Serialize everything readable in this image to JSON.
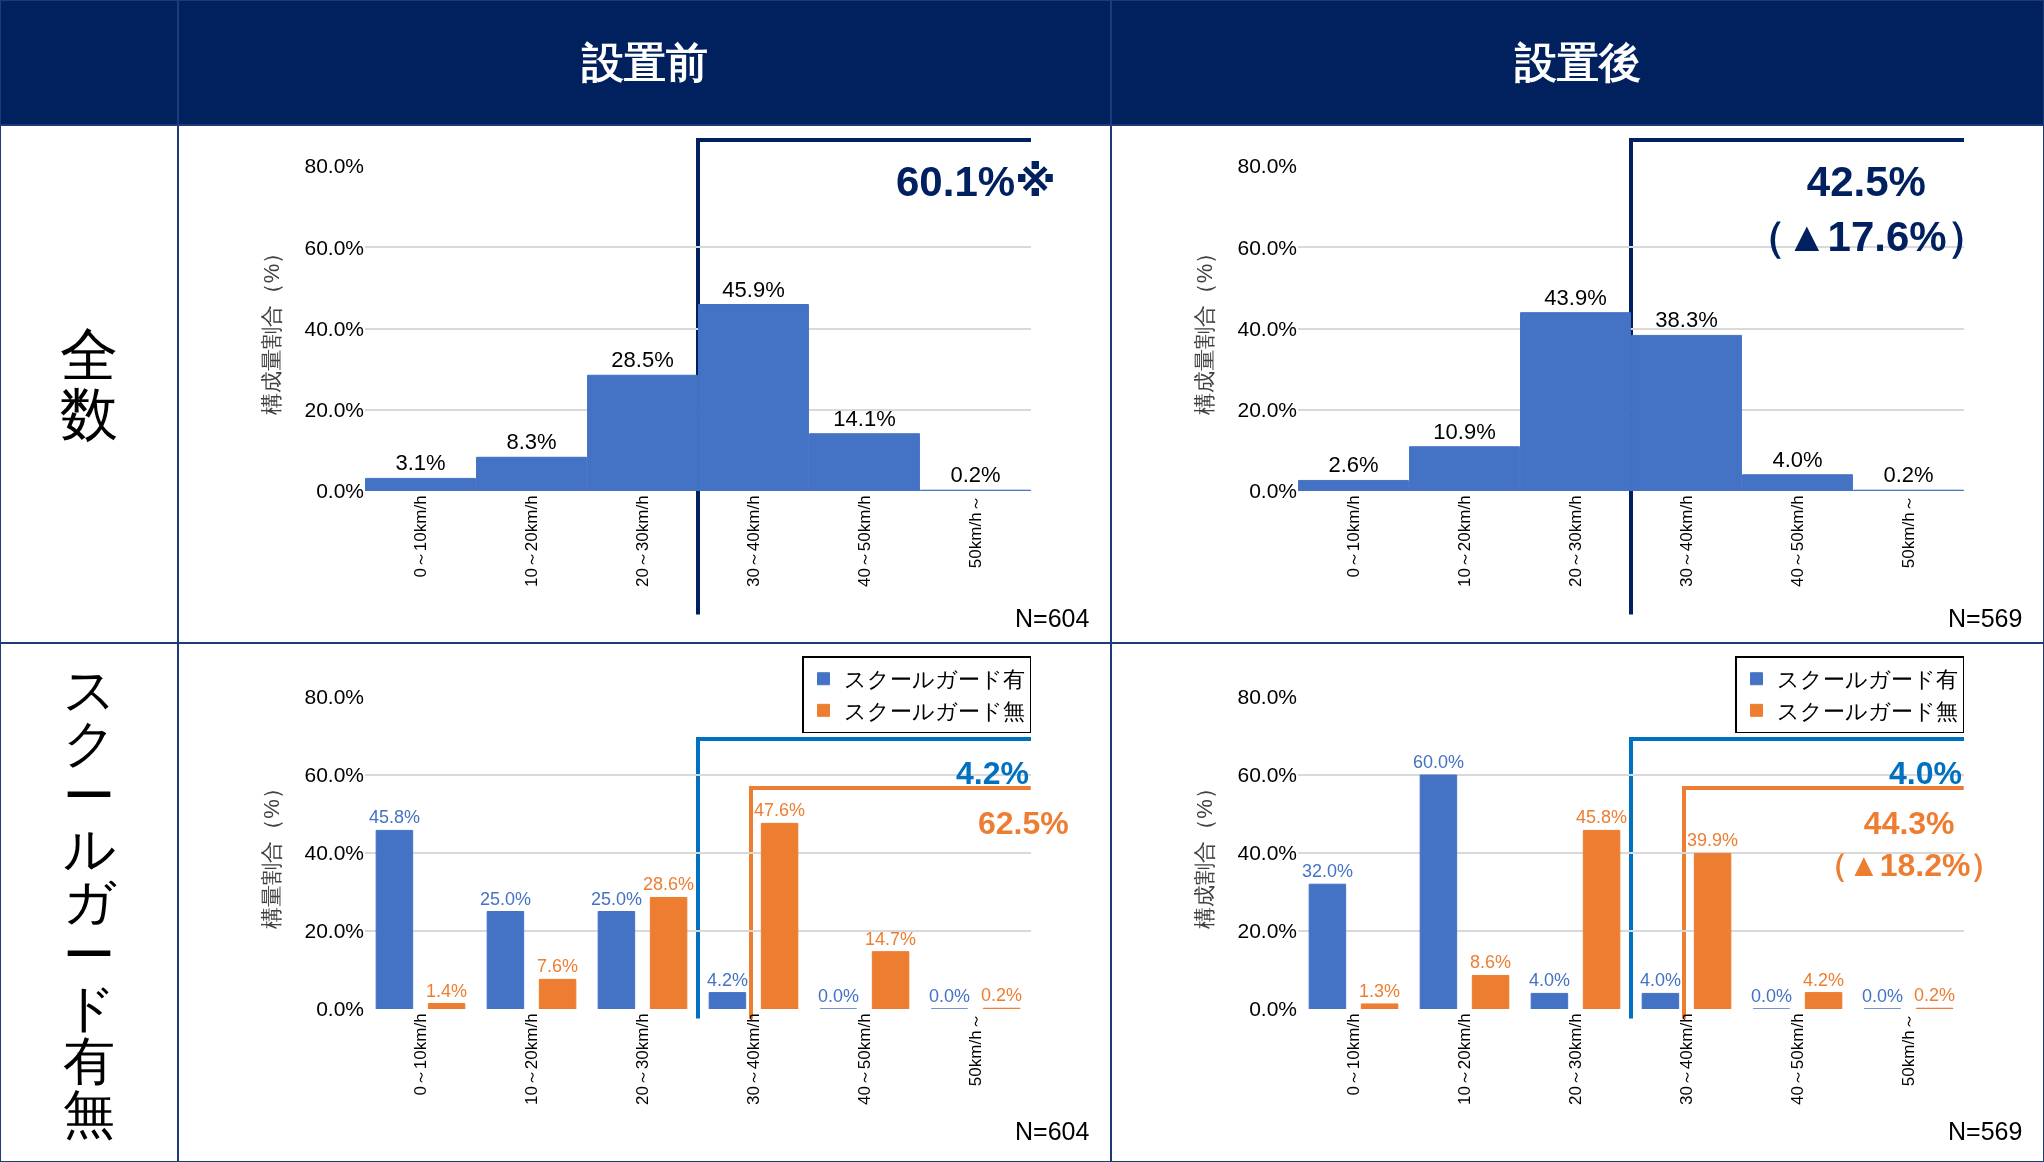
{
  "chart_data": [
    {
      "type": "bar",
      "title": "設置前",
      "subtitle": "全数",
      "ylabel": "構成量割合（%）",
      "categories": [
        "0～10km/h",
        "10～20km/h",
        "20～30km/h",
        "30～40km/h",
        "40～50km/h",
        "50km/h～"
      ],
      "values": [
        3.1,
        8.3,
        28.5,
        45.9,
        14.1,
        0.2
      ],
      "value_labels": [
        "3.1%",
        "8.3%",
        "28.5%",
        "45.9%",
        "14.1%",
        "0.2%"
      ],
      "color": "#4472c4",
      "ylim": [
        0,
        80
      ],
      "yticks": [
        {
          "value": 0,
          "label": "0.0%"
        },
        {
          "value": 20,
          "label": "20.0%"
        },
        {
          "value": 40,
          "label": "40.0%"
        },
        {
          "value": 60,
          "label": "60.0%"
        },
        {
          "value": 80,
          "label": "80.0%"
        }
      ],
      "grid": "y",
      "annotations": [
        "60.1%※",
        "N=604"
      ]
    },
    {
      "type": "bar",
      "title": "設置後",
      "ylabel": "構成量割合（%）",
      "categories": [
        "0～10km/h",
        "10～20km/h",
        "20～30km/h",
        "30～40km/h",
        "40～50km/h",
        "50km/h～"
      ],
      "values": [
        2.6,
        10.9,
        43.9,
        38.3,
        4.0,
        0.2
      ],
      "value_labels": [
        "2.6%",
        "10.9%",
        "43.9%",
        "38.3%",
        "4.0%",
        "0.2%"
      ],
      "color": "#4472c4",
      "ylim": [
        0,
        80
      ],
      "yticks": [
        {
          "value": 0,
          "label": "0.0%"
        },
        {
          "value": 20,
          "label": "20.0%"
        },
        {
          "value": 40,
          "label": "40.0%"
        },
        {
          "value": 60,
          "label": "60.0%"
        },
        {
          "value": 80,
          "label": "80.0%"
        }
      ],
      "grid": "y",
      "annotations": [
        "42.5%\n（▲17.6%）",
        "N=569"
      ]
    },
    {
      "type": "bar",
      "subtitle": "スクールガード有無",
      "ylabel": "構量割合（%）",
      "categories": [
        "0～10km/h",
        "10～20km/h",
        "20～30km/h",
        "30～40km/h",
        "40～50km/h",
        "50km/h～"
      ],
      "series": [
        {
          "name": "スクールガード有",
          "color": "#4472c4",
          "values": [
            45.8,
            25.0,
            25.0,
            4.2,
            0.0,
            0.0
          ],
          "value_labels": [
            "45.8%",
            "25.0%",
            "25.0%",
            "4.2%",
            "0.0%",
            "0.0%"
          ]
        },
        {
          "name": "スクールガード無",
          "color": "#ed7d31",
          "values": [
            1.4,
            7.6,
            28.6,
            47.6,
            14.7,
            0.2
          ],
          "value_labels": [
            "1.4%",
            "7.6%",
            "28.6%",
            "47.6%",
            "14.7%",
            "0.2%"
          ]
        }
      ],
      "legend": "top right",
      "ylim": [
        0,
        80
      ],
      "yticks": [
        {
          "value": 0,
          "label": "0.0%"
        },
        {
          "value": 20,
          "label": "20.0%"
        },
        {
          "value": 40,
          "label": "40.0%"
        },
        {
          "value": 60,
          "label": "60.0%"
        },
        {
          "value": 80,
          "label": "80.0%"
        }
      ],
      "grid": "y",
      "annotations": [
        "4.2%",
        "62.5%",
        "N=604"
      ]
    },
    {
      "type": "bar",
      "ylabel": "構成割合（%）",
      "categories": [
        "0～10km/h",
        "10～20km/h",
        "20～30km/h",
        "30～40km/h",
        "40～50km/h",
        "50km/h～"
      ],
      "series": [
        {
          "name": "スクールガード有",
          "color": "#4472c4",
          "values": [
            32.0,
            60.0,
            4.0,
            4.0,
            0.0,
            0.0
          ],
          "value_labels": [
            "32.0%",
            "60.0%",
            "4.0%",
            "4.0%",
            "0.0%",
            "0.0%"
          ]
        },
        {
          "name": "スクールガード無",
          "color": "#ed7d31",
          "values": [
            1.3,
            8.6,
            45.8,
            39.9,
            4.2,
            0.2
          ],
          "value_labels": [
            "1.3%",
            "8.6%",
            "45.8%",
            "39.9%",
            "4.2%",
            "0.2%"
          ]
        }
      ],
      "legend": "top right",
      "ylim": [
        0,
        80
      ],
      "yticks": [
        {
          "value": 0,
          "label": "0.0%"
        },
        {
          "value": 20,
          "label": "20.0%"
        },
        {
          "value": 40,
          "label": "40.0%"
        },
        {
          "value": 60,
          "label": "60.0%"
        },
        {
          "value": 80,
          "label": "80.0%"
        }
      ],
      "grid": "y",
      "annotations": [
        "4.0%",
        "44.3%\n（▲18.2%）",
        "N=569"
      ]
    }
  ]
}
